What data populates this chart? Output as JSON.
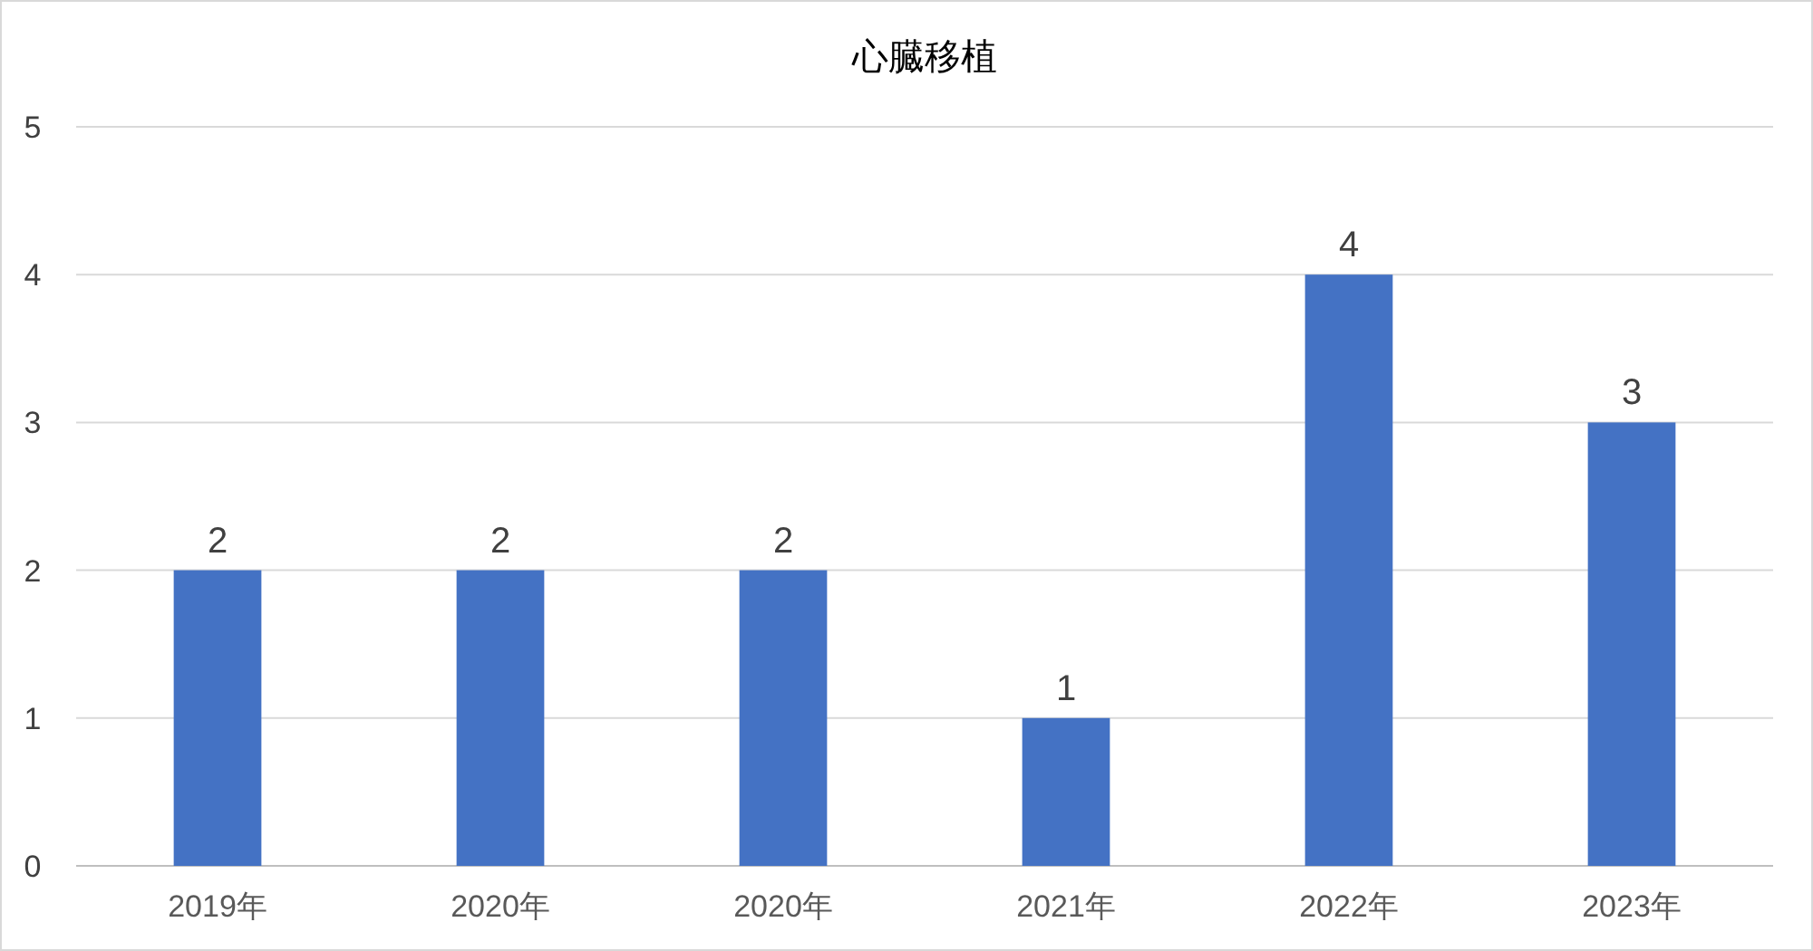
{
  "chart_data": {
    "type": "bar",
    "title": "心臓移植",
    "categories": [
      "2019年",
      "2020年",
      "2020年",
      "2021年",
      "2022年",
      "2023年"
    ],
    "values": [
      2,
      2,
      2,
      1,
      4,
      3
    ],
    "color": "#4472c4",
    "ylim": [
      0,
      5
    ],
    "yticks": [
      0,
      1,
      2,
      3,
      4,
      5
    ],
    "grid": "y",
    "data_labels": true
  }
}
